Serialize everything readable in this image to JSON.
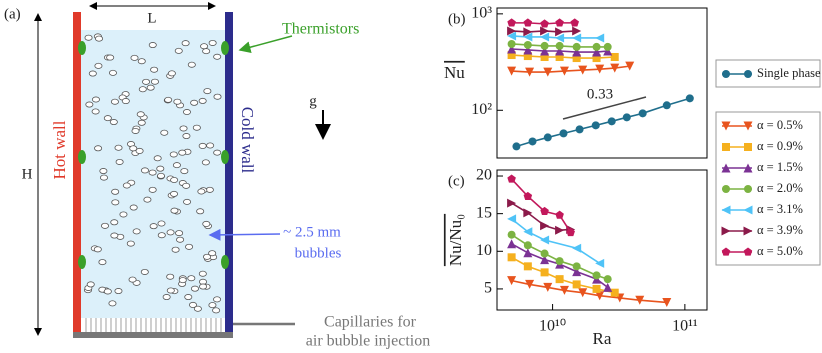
{
  "diagram": {
    "panel": "(a)",
    "width_label": "L",
    "height_label": "H",
    "hot_wall": "Hot wall",
    "cold_wall": "Cold wall",
    "thermistors": "Thermistors",
    "gravity": "g",
    "bubble_size": "~ 2.5 mm",
    "bubbles": "bubbles",
    "capillaries": [
      "Capillaries for",
      "air bubble injection"
    ]
  },
  "chart_data": [
    {
      "type": "line",
      "label": "(b)",
      "ylabel": "Nu",
      "log_x": true,
      "log_y": true,
      "xlim": [
        3800000000.0,
        147000000000.0
      ],
      "ylim": [
        32,
        1150
      ],
      "yticks": [
        {
          "value": 1000,
          "label": "10³"
        },
        {
          "value": 100,
          "label": "10²"
        }
      ],
      "annotation": "0.33",
      "series": [
        {
          "name": "Single phase",
          "color": "#1f6e8c",
          "marker": "circle",
          "x": [
            5330000000.0,
            7050000000.0,
            9200000000.0,
            12100000000.0,
            16000000000.0,
            21200000000.0,
            28000000000.0,
            36400000000.0,
            48000000000.0,
            73000000000.0,
            109000000000.0
          ],
          "values": [
            42.2,
            47.5,
            52.3,
            57.6,
            63.4,
            69.8,
            76.8,
            84.5,
            93,
            112.7,
            133
          ]
        },
        {
          "color": "#e8541e",
          "marker": "down",
          "x": [
            4900000000.0,
            6700000000.0,
            9200000000.0,
            12300000000.0,
            16900000000.0,
            22700000000.0,
            29500000000.0,
            38300000000.0
          ],
          "values": [
            255,
            249,
            249,
            255,
            261,
            267,
            274,
            287
          ]
        },
        {
          "color": "#f5b01e",
          "marker": "square",
          "x": [
            4900000000.0,
            6500000000.0,
            8700000000.0,
            11300000000.0,
            15200000000.0,
            21500000000.0,
            29500000000.0
          ],
          "values": [
            374,
            365,
            357,
            357,
            348,
            348,
            357
          ]
        },
        {
          "color": "#7b3294",
          "marker": "up",
          "x": [
            4900000000.0,
            6500000000.0,
            8700000000.0,
            11300000000.0,
            15200000000.0,
            21500000000.0,
            26100000000.0
          ],
          "values": [
            432,
            422,
            412,
            412,
            402,
            402,
            412
          ]
        },
        {
          "color": "#7cb342",
          "marker": "circle",
          "x": [
            4900000000.0,
            6500000000.0,
            8700000000.0,
            11300000000.0,
            15200000000.0,
            21500000000.0,
            26100000000.0
          ],
          "values": [
            487,
            476,
            465,
            465,
            454,
            454,
            454
          ]
        },
        {
          "color": "#4fc3f7",
          "marker": "left",
          "x": [
            4900000000.0,
            6500000000.0,
            8700000000.0,
            11300000000.0,
            15200000000.0,
            22700000000.0
          ],
          "values": [
            590,
            576,
            576,
            562,
            562,
            562
          ]
        },
        {
          "color": "#8b1a4a",
          "marker": "right",
          "x": [
            4900000000.0,
            6500000000.0,
            8700000000.0,
            11300000000.0,
            15200000000.0
          ],
          "values": [
            665,
            650,
            665,
            650,
            665
          ]
        },
        {
          "color": "#c2185b",
          "marker": "pentagon",
          "x": [
            4900000000.0,
            6500000000.0,
            8700000000.0,
            11300000000.0,
            14700000000.0
          ],
          "values": [
            806,
            806,
            787,
            806,
            806
          ]
        }
      ]
    },
    {
      "type": "line",
      "label": "(c)",
      "ylabel": "Nu/Nu₀",
      "xlabel": "Ra",
      "log_x": true,
      "log_y": false,
      "xlim": [
        3800000000.0,
        147000000000.0
      ],
      "ylim": [
        2.2,
        20.8
      ],
      "xticks": [
        {
          "value": 10000000000.0,
          "label": "10¹⁰"
        },
        {
          "value": 100000000000.0,
          "label": "10¹¹"
        }
      ],
      "yticks": [
        5,
        10,
        15,
        20
      ],
      "series": [
        {
          "name": "α = 0.5%",
          "color": "#e8541e",
          "marker": "down",
          "x": [
            4900000000.0,
            6700000000.0,
            9200000000.0,
            12300000000.0,
            16900000000.0,
            22700000000.0,
            32200000000.0,
            45600000000.0,
            73000000000.0
          ],
          "values": [
            6.1,
            5.6,
            5.2,
            4.8,
            4.5,
            4.1,
            3.8,
            3.5,
            3.2
          ]
        },
        {
          "name": "α = 0.9%",
          "color": "#f5b01e",
          "marker": "square",
          "x": [
            4900000000.0,
            6500000000.0,
            8700000000.0,
            11300000000.0,
            15200000000.0,
            21500000000.0,
            29500000000.0
          ],
          "values": [
            9.2,
            8.0,
            7.2,
            6.3,
            5.6,
            5.0,
            4.5
          ]
        },
        {
          "name": "α = 1.5%",
          "color": "#7b3294",
          "marker": "up",
          "x": [
            4900000000.0,
            6500000000.0,
            8700000000.0,
            11300000000.0,
            15200000000.0,
            21500000000.0,
            26100000000.0
          ],
          "values": [
            11.0,
            9.8,
            8.9,
            8.3,
            7.3,
            6.3,
            5.2
          ]
        },
        {
          "name": "α = 2.0%",
          "color": "#7cb342",
          "marker": "circle",
          "x": [
            4900000000.0,
            6500000000.0,
            8700000000.0,
            11300000000.0,
            15200000000.0,
            21500000000.0,
            26100000000.0
          ],
          "values": [
            12.2,
            10.8,
            9.7,
            8.7,
            8.0,
            6.8,
            6.3
          ]
        },
        {
          "name": "α = 3.1%",
          "color": "#4fc3f7",
          "marker": "left",
          "x": [
            4900000000.0,
            6500000000.0,
            8700000000.0,
            15200000000.0,
            22700000000.0
          ],
          "values": [
            14.3,
            12.6,
            11.5,
            10.4,
            8.4
          ]
        },
        {
          "name": "α = 3.9%",
          "color": "#8b1a4a",
          "marker": "right",
          "x": [
            4900000000.0,
            6500000000.0,
            8700000000.0,
            11300000000.0,
            13700000000.0
          ],
          "values": [
            16.4,
            15.1,
            13.4,
            12.8,
            12.9
          ]
        },
        {
          "name": "α = 5.0%",
          "color": "#c2185b",
          "marker": "pentagon",
          "x": [
            4900000000.0,
            6500000000.0,
            8700000000.0,
            11300000000.0,
            13700000000.0
          ],
          "values": [
            19.6,
            17.3,
            15.3,
            14.8,
            12.5
          ]
        }
      ]
    }
  ]
}
